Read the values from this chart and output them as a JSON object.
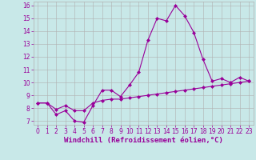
{
  "xlabel": "Windchill (Refroidissement éolien,°C)",
  "x": [
    0,
    1,
    2,
    3,
    4,
    5,
    6,
    7,
    8,
    9,
    10,
    11,
    12,
    13,
    14,
    15,
    16,
    17,
    18,
    19,
    20,
    21,
    22,
    23
  ],
  "windchill": [
    8.4,
    8.4,
    7.5,
    7.8,
    7.0,
    6.9,
    8.2,
    9.4,
    9.4,
    8.9,
    9.8,
    10.8,
    13.3,
    15.0,
    14.8,
    16.0,
    15.2,
    13.9,
    11.8,
    10.1,
    10.3,
    10.0,
    10.4,
    10.1
  ],
  "temperature": [
    8.4,
    8.4,
    7.9,
    8.2,
    7.8,
    7.8,
    8.4,
    8.6,
    8.7,
    8.7,
    8.8,
    8.9,
    9.0,
    9.1,
    9.2,
    9.3,
    9.4,
    9.5,
    9.6,
    9.7,
    9.8,
    9.9,
    10.0,
    10.1
  ],
  "line_color": "#990099",
  "bg_color": "#c8e8e8",
  "grid_color": "#b0b0b0",
  "ylim": [
    6.7,
    16.3
  ],
  "xlim": [
    -0.5,
    23.5
  ],
  "yticks": [
    7,
    8,
    9,
    10,
    11,
    12,
    13,
    14,
    15,
    16
  ],
  "xticks": [
    0,
    1,
    2,
    3,
    4,
    5,
    6,
    7,
    8,
    9,
    10,
    11,
    12,
    13,
    14,
    15,
    16,
    17,
    18,
    19,
    20,
    21,
    22,
    23
  ],
  "marker": "D",
  "markersize": 2.0,
  "linewidth": 0.8,
  "tick_fontsize": 5.5,
  "label_fontsize": 6.5
}
